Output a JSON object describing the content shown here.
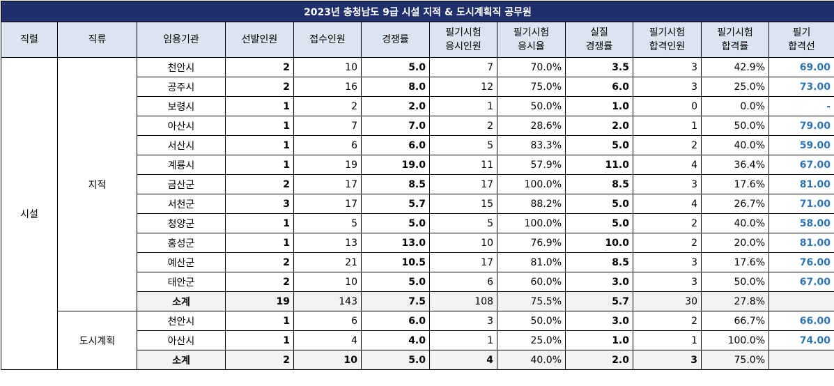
{
  "title": "2023년 충청남도 9급 시설 지적 & 도시계획직 공무원",
  "headers": [
    "직렬",
    "직류",
    "임용기관",
    "선발인원",
    "접수인원",
    "경쟁률",
    "필기시험\n응시인원",
    "필기시험\n응시율",
    "실질\n경쟁률",
    "필기시험\n합격인원",
    "필기시험\n합격률",
    "필기\n합격선"
  ],
  "series_label": "시설",
  "groups": [
    {
      "name": "지적",
      "rows": [
        {
          "org": "천안시",
          "select": "2",
          "apply": "10",
          "rate": "5.0",
          "written": "7",
          "attend": "70.0%",
          "real": "3.5",
          "pass": "3",
          "pass_rate": "42.9%",
          "cutoff": "69.00"
        },
        {
          "org": "공주시",
          "select": "2",
          "apply": "16",
          "rate": "8.0",
          "written": "12",
          "attend": "75.0%",
          "real": "6.0",
          "pass": "3",
          "pass_rate": "25.0%",
          "cutoff": "73.00"
        },
        {
          "org": "보령시",
          "select": "1",
          "apply": "2",
          "rate": "2.0",
          "written": "1",
          "attend": "50.0%",
          "real": "1.0",
          "pass": "0",
          "pass_rate": "0.0%",
          "cutoff": "-"
        },
        {
          "org": "아산시",
          "select": "1",
          "apply": "7",
          "rate": "7.0",
          "written": "2",
          "attend": "28.6%",
          "real": "2.0",
          "pass": "1",
          "pass_rate": "50.0%",
          "cutoff": "79.00"
        },
        {
          "org": "서산시",
          "select": "1",
          "apply": "6",
          "rate": "6.0",
          "written": "5",
          "attend": "83.3%",
          "real": "5.0",
          "pass": "2",
          "pass_rate": "40.0%",
          "cutoff": "59.00"
        },
        {
          "org": "계룡시",
          "select": "1",
          "apply": "19",
          "rate": "19.0",
          "written": "11",
          "attend": "57.9%",
          "real": "11.0",
          "pass": "4",
          "pass_rate": "36.4%",
          "cutoff": "67.00"
        },
        {
          "org": "금산군",
          "select": "2",
          "apply": "17",
          "rate": "8.5",
          "written": "17",
          "attend": "100.0%",
          "real": "8.5",
          "pass": "3",
          "pass_rate": "17.6%",
          "cutoff": "81.00"
        },
        {
          "org": "서천군",
          "select": "3",
          "apply": "17",
          "rate": "5.7",
          "written": "15",
          "attend": "88.2%",
          "real": "5.0",
          "pass": "4",
          "pass_rate": "26.7%",
          "cutoff": "71.00"
        },
        {
          "org": "청양군",
          "select": "1",
          "apply": "5",
          "rate": "5.0",
          "written": "5",
          "attend": "100.0%",
          "real": "5.0",
          "pass": "2",
          "pass_rate": "40.0%",
          "cutoff": "58.00"
        },
        {
          "org": "홍성군",
          "select": "1",
          "apply": "13",
          "rate": "13.0",
          "written": "10",
          "attend": "76.9%",
          "real": "10.0",
          "pass": "2",
          "pass_rate": "20.0%",
          "cutoff": "81.00"
        },
        {
          "org": "예산군",
          "select": "2",
          "apply": "21",
          "rate": "10.5",
          "written": "17",
          "attend": "81.0%",
          "real": "8.5",
          "pass": "3",
          "pass_rate": "17.6%",
          "cutoff": "76.00"
        },
        {
          "org": "태안군",
          "select": "2",
          "apply": "10",
          "rate": "5.0",
          "written": "6",
          "attend": "60.0%",
          "real": "3.0",
          "pass": "3",
          "pass_rate": "50.0%",
          "cutoff": "67.00"
        }
      ],
      "subtotal": {
        "org": "소계",
        "select": "19",
        "apply": "143",
        "rate": "7.5",
        "written": "108",
        "attend": "75.5%",
        "real": "5.7",
        "pass": "30",
        "pass_rate": "27.8%",
        "cutoff": ""
      }
    },
    {
      "name": "도시계획",
      "rows": [
        {
          "org": "천안시",
          "select": "1",
          "apply": "6",
          "rate": "6.0",
          "written": "3",
          "attend": "50.0%",
          "real": "3.0",
          "pass": "2",
          "pass_rate": "66.7%",
          "cutoff": "66.00"
        },
        {
          "org": "아산시",
          "select": "1",
          "apply": "4",
          "rate": "4.0",
          "written": "1",
          "attend": "25.0%",
          "real": "1.0",
          "pass": "1",
          "pass_rate": "100.0%",
          "cutoff": "74.00"
        }
      ],
      "subtotal": {
        "org": "소계",
        "select": "2",
        "apply": "10",
        "rate": "5.0",
        "written": "4",
        "attend": "40.0%",
        "real": "2.0",
        "pass": "3",
        "pass_rate": "75.0%",
        "cutoff": ""
      }
    }
  ]
}
